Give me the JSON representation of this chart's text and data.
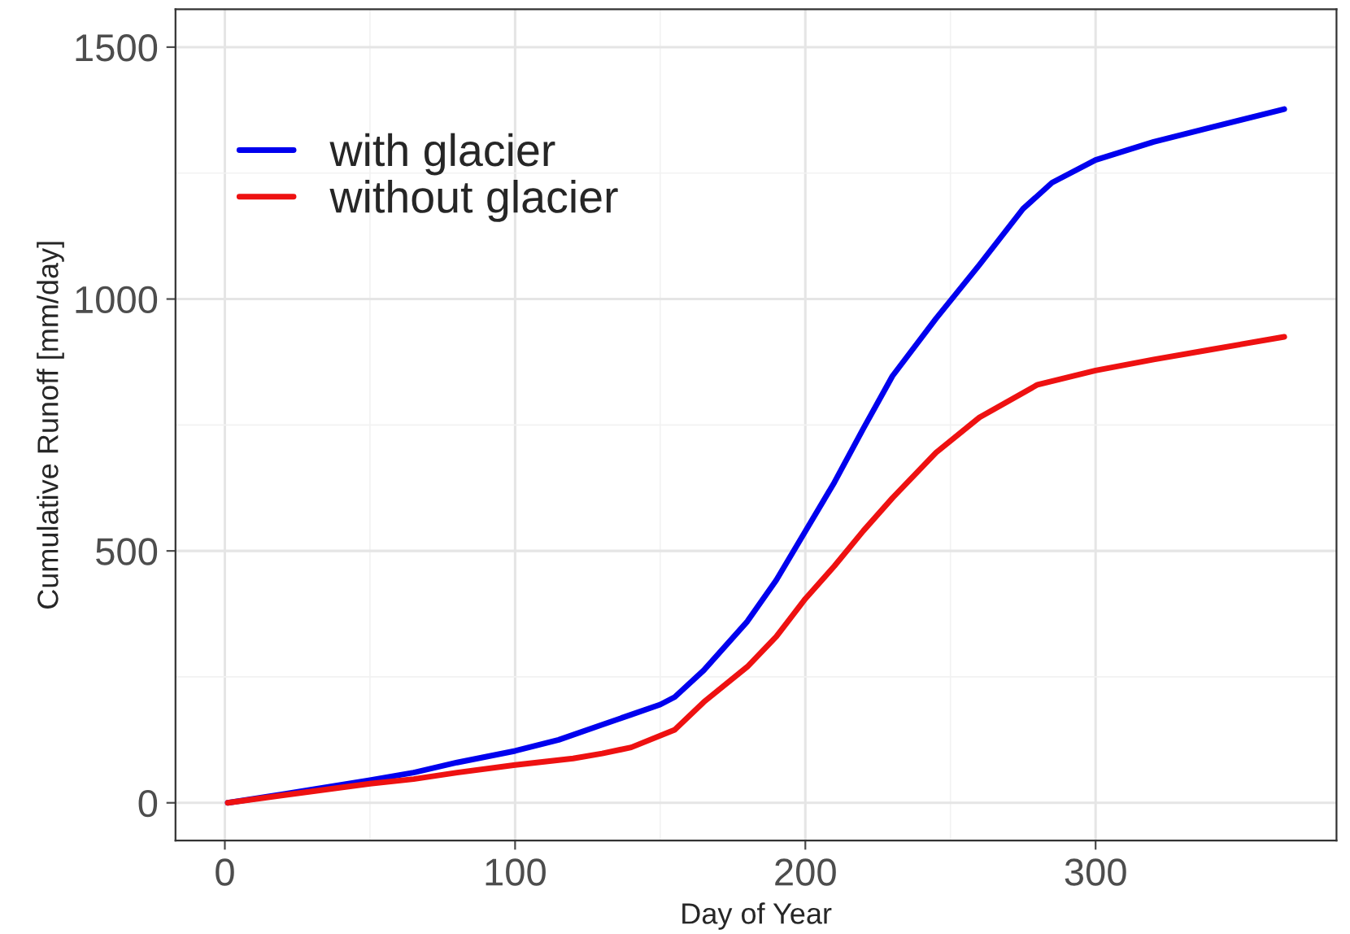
{
  "chart_data": {
    "type": "line",
    "xlabel": "Day of Year",
    "ylabel": "Cumulative Runoff [mm/day]",
    "xlim": [
      -17,
      383
    ],
    "ylim": [
      -75,
      1575
    ],
    "xticks": [
      0,
      100,
      200,
      300
    ],
    "yticks": [
      0,
      500,
      1000,
      1500
    ],
    "grid": true,
    "legend": "top left",
    "line_style": "solid",
    "marker": "none",
    "series": [
      {
        "name": "with glacier",
        "color": "#0000ee",
        "x": [
          1,
          20,
          50,
          65,
          80,
          100,
          115,
          130,
          140,
          150,
          155,
          165,
          180,
          190,
          200,
          210,
          220,
          230,
          245,
          260,
          275,
          285,
          300,
          320,
          340,
          365
        ],
        "values": [
          0,
          17,
          45,
          60,
          80,
          103,
          125,
          155,
          175,
          195,
          210,
          263,
          360,
          442,
          539,
          636,
          743,
          847,
          961,
          1068,
          1179,
          1231,
          1276,
          1312,
          1341,
          1377
        ]
      },
      {
        "name": "without glacier",
        "color": "#ee1111",
        "x": [
          1,
          20,
          50,
          65,
          80,
          100,
          120,
          130,
          140,
          155,
          165,
          180,
          190,
          200,
          210,
          220,
          230,
          245,
          260,
          280,
          300,
          320,
          340,
          365
        ],
        "values": [
          0,
          15,
          38,
          47,
          60,
          75,
          88,
          98,
          110,
          145,
          200,
          270,
          330,
          405,
          470,
          540,
          605,
          695,
          765,
          830,
          858,
          880,
          900,
          925
        ]
      }
    ]
  }
}
